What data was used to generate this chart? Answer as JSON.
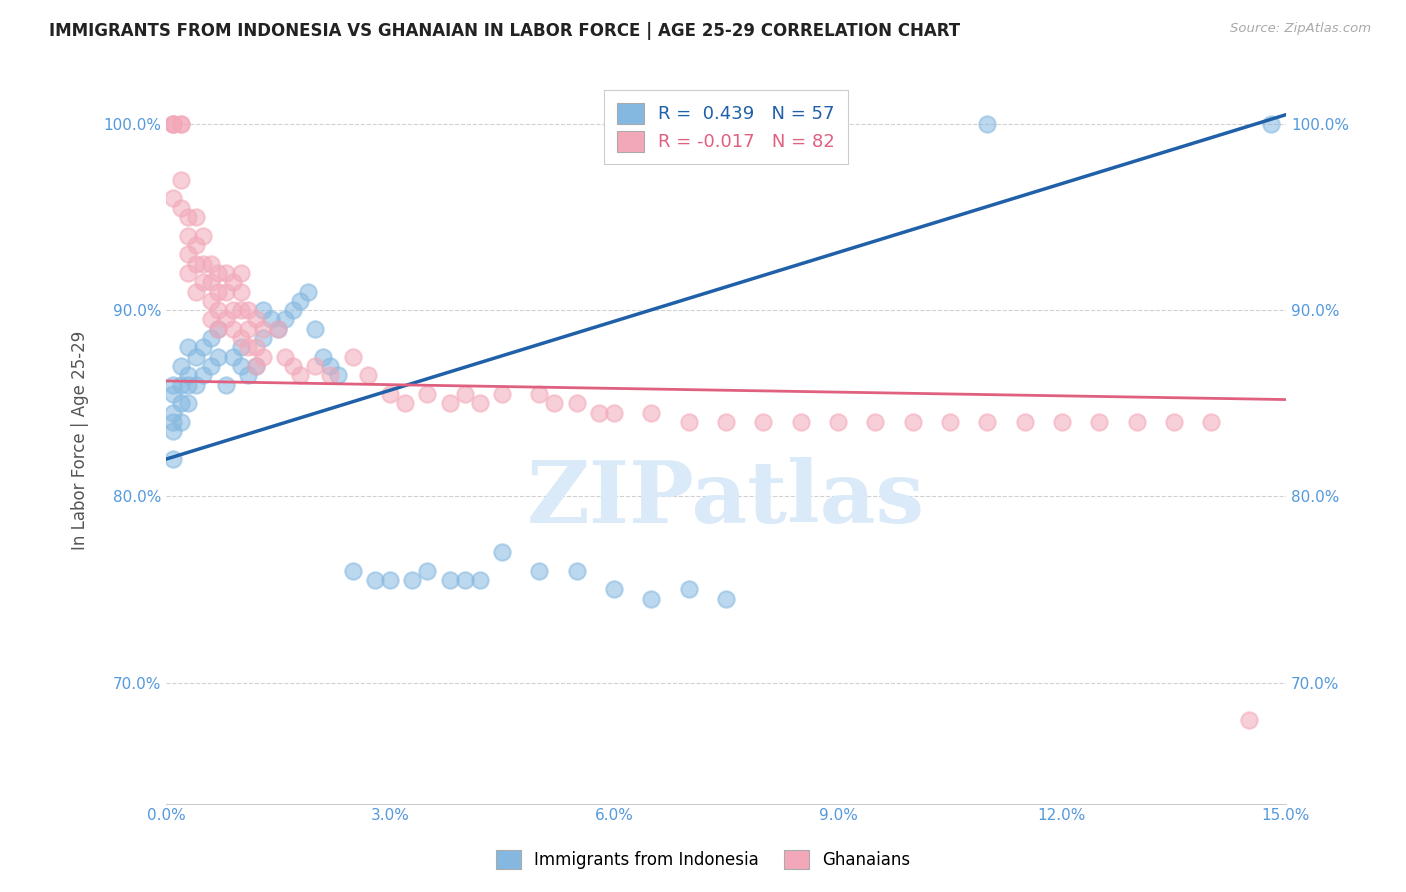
{
  "title": "IMMIGRANTS FROM INDONESIA VS GHANAIAN IN LABOR FORCE | AGE 25-29 CORRELATION CHART",
  "source_text": "Source: ZipAtlas.com",
  "ylabel": "In Labor Force | Age 25-29",
  "xlim": [
    0.0,
    0.15
  ],
  "ylim": [
    0.635,
    1.025
  ],
  "xticks": [
    0.0,
    0.03,
    0.06,
    0.09,
    0.12,
    0.15
  ],
  "xticklabels": [
    "0.0%",
    "3.0%",
    "6.0%",
    "9.0%",
    "12.0%",
    "15.0%"
  ],
  "yticks": [
    0.7,
    0.8,
    0.9,
    1.0
  ],
  "yticklabels": [
    "70.0%",
    "80.0%",
    "90.0%",
    "100.0%"
  ],
  "blue_color": "#85b8e0",
  "pink_color": "#f2a8b8",
  "trendline_blue": "#2060a8",
  "trendline_pink": "#e06080",
  "watermark": "ZIPatlas",
  "watermark_color": "#daeaf8",
  "tick_color": "#5599dd",
  "blue_trendline_x0": 0.0,
  "blue_trendline_y0": 0.82,
  "blue_trendline_x1": 0.15,
  "blue_trendline_y1": 1.005,
  "pink_trendline_x0": 0.0,
  "pink_trendline_y0": 0.862,
  "pink_trendline_x1": 0.15,
  "pink_trendline_y1": 0.852,
  "blue_scatter_x": [
    0.001,
    0.001,
    0.001,
    0.001,
    0.001,
    0.001,
    0.002,
    0.002,
    0.002,
    0.002,
    0.003,
    0.003,
    0.003,
    0.003,
    0.004,
    0.004,
    0.005,
    0.005,
    0.006,
    0.006,
    0.007,
    0.007,
    0.008,
    0.009,
    0.01,
    0.01,
    0.011,
    0.012,
    0.013,
    0.013,
    0.014,
    0.015,
    0.016,
    0.017,
    0.018,
    0.019,
    0.02,
    0.021,
    0.022,
    0.023,
    0.025,
    0.028,
    0.03,
    0.033,
    0.035,
    0.038,
    0.04,
    0.042,
    0.045,
    0.05,
    0.055,
    0.06,
    0.065,
    0.07,
    0.075,
    0.11,
    0.148
  ],
  "blue_scatter_y": [
    0.86,
    0.855,
    0.845,
    0.84,
    0.835,
    0.82,
    0.87,
    0.86,
    0.85,
    0.84,
    0.88,
    0.865,
    0.86,
    0.85,
    0.875,
    0.86,
    0.88,
    0.865,
    0.885,
    0.87,
    0.89,
    0.875,
    0.86,
    0.875,
    0.88,
    0.87,
    0.865,
    0.87,
    0.9,
    0.885,
    0.895,
    0.89,
    0.895,
    0.9,
    0.905,
    0.91,
    0.89,
    0.875,
    0.87,
    0.865,
    0.76,
    0.755,
    0.755,
    0.755,
    0.76,
    0.755,
    0.755,
    0.755,
    0.77,
    0.76,
    0.76,
    0.75,
    0.745,
    0.75,
    0.745,
    1.0,
    1.0
  ],
  "pink_scatter_x": [
    0.001,
    0.001,
    0.001,
    0.001,
    0.002,
    0.002,
    0.002,
    0.002,
    0.003,
    0.003,
    0.003,
    0.003,
    0.004,
    0.004,
    0.004,
    0.004,
    0.005,
    0.005,
    0.005,
    0.006,
    0.006,
    0.006,
    0.006,
    0.007,
    0.007,
    0.007,
    0.007,
    0.008,
    0.008,
    0.008,
    0.009,
    0.009,
    0.009,
    0.01,
    0.01,
    0.01,
    0.01,
    0.011,
    0.011,
    0.011,
    0.012,
    0.012,
    0.012,
    0.013,
    0.013,
    0.015,
    0.016,
    0.017,
    0.018,
    0.02,
    0.022,
    0.025,
    0.027,
    0.03,
    0.032,
    0.035,
    0.038,
    0.04,
    0.042,
    0.045,
    0.05,
    0.052,
    0.055,
    0.058,
    0.06,
    0.065,
    0.07,
    0.075,
    0.08,
    0.085,
    0.09,
    0.095,
    0.1,
    0.105,
    0.11,
    0.115,
    0.12,
    0.125,
    0.13,
    0.135,
    0.14,
    0.145
  ],
  "pink_scatter_y": [
    1.0,
    1.0,
    1.0,
    0.96,
    1.0,
    1.0,
    0.97,
    0.955,
    0.95,
    0.94,
    0.93,
    0.92,
    0.95,
    0.935,
    0.925,
    0.91,
    0.94,
    0.925,
    0.915,
    0.925,
    0.915,
    0.905,
    0.895,
    0.92,
    0.91,
    0.9,
    0.89,
    0.92,
    0.91,
    0.895,
    0.915,
    0.9,
    0.89,
    0.92,
    0.91,
    0.9,
    0.885,
    0.9,
    0.89,
    0.88,
    0.895,
    0.88,
    0.87,
    0.89,
    0.875,
    0.89,
    0.875,
    0.87,
    0.865,
    0.87,
    0.865,
    0.875,
    0.865,
    0.855,
    0.85,
    0.855,
    0.85,
    0.855,
    0.85,
    0.855,
    0.855,
    0.85,
    0.85,
    0.845,
    0.845,
    0.845,
    0.84,
    0.84,
    0.84,
    0.84,
    0.84,
    0.84,
    0.84,
    0.84,
    0.84,
    0.84,
    0.84,
    0.84,
    0.84,
    0.84,
    0.84,
    0.68
  ]
}
